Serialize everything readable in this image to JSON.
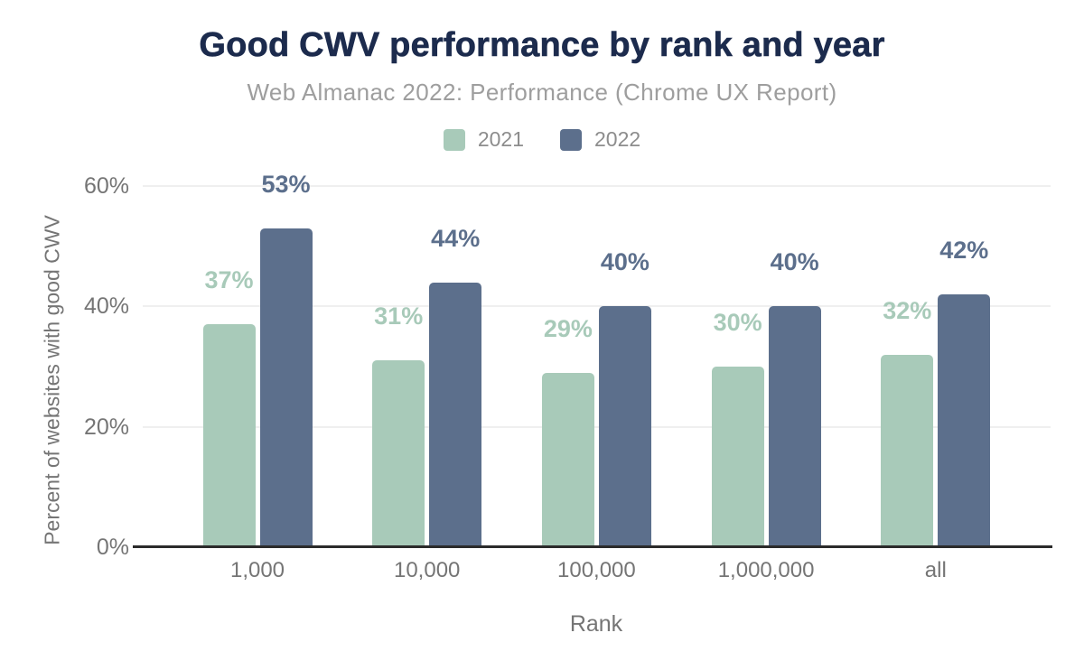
{
  "chart_data": {
    "type": "bar",
    "title": "Good CWV performance by rank and year",
    "subtitle": "Web Almanac 2022: Performance (Chrome UX Report)",
    "xlabel": "Rank",
    "ylabel": "Percent of websites with good CWV",
    "categories": [
      "1,000",
      "10,000",
      "100,000",
      "1,000,000",
      "all"
    ],
    "series": [
      {
        "name": "2021",
        "color": "#a8cab9",
        "values": [
          37,
          31,
          29,
          30,
          32
        ]
      },
      {
        "name": "2022",
        "color": "#5c6f8c",
        "values": [
          53,
          44,
          40,
          40,
          42
        ]
      }
    ],
    "bar_labels": [
      [
        "37%",
        "31%",
        "29%",
        "30%",
        "32%"
      ],
      [
        "53%",
        "44%",
        "40%",
        "40%",
        "42%"
      ]
    ],
    "value_suffix": "%",
    "ylim": [
      0,
      60
    ],
    "yticks": [
      0,
      20,
      40,
      60
    ],
    "ytick_labels": [
      "0%",
      "20%",
      "40%",
      "60%"
    ],
    "grid": "horizontal",
    "legend_position": "top"
  },
  "colors": {
    "background": "#ffffff",
    "title": "#1c2b4d",
    "subtitle": "#9e9e9e",
    "legend_text": "#8d8d8d",
    "axis_text": "#757575",
    "gridline": "#efefef",
    "axis_line": "#2b2b2b"
  }
}
